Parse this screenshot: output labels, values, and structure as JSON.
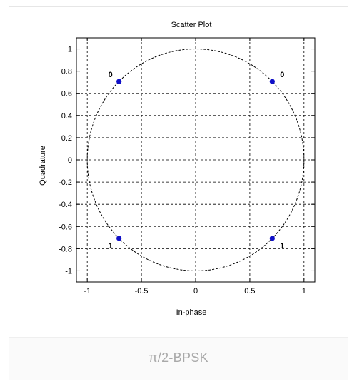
{
  "caption": "π/2-BPSK",
  "chart_data": {
    "type": "scatter",
    "title": "Scatter Plot",
    "xlabel": "In-phase",
    "ylabel": "Quadrature",
    "xlim": [
      -1.1,
      1.1
    ],
    "ylim": [
      -1.1,
      1.1
    ],
    "xticks": [
      -1,
      -0.5,
      0,
      0.5,
      1
    ],
    "xtick_labels": [
      "-1",
      "-0.5",
      "0",
      "0.5",
      "1"
    ],
    "yticks": [
      1,
      0.8,
      0.6,
      0.4,
      0.2,
      0,
      -0.2,
      -0.4,
      -0.6,
      -0.8,
      -1
    ],
    "ytick_labels": [
      "1",
      "0.8",
      "0.6",
      "0.4",
      "0.2",
      "0",
      "-0.2",
      "-0.4",
      "-0.6",
      "-0.8",
      "-1"
    ],
    "grid": true,
    "reference_circle": {
      "radius": 1,
      "style": "dashed"
    },
    "points": [
      {
        "x": -0.707,
        "y": 0.707,
        "label": "0"
      },
      {
        "x": 0.707,
        "y": 0.707,
        "label": "0"
      },
      {
        "x": -0.707,
        "y": -0.707,
        "label": "1"
      },
      {
        "x": 0.707,
        "y": -0.707,
        "label": "1"
      }
    ],
    "colors": {
      "points": "#1010c8",
      "axes": "#000000",
      "grid": "#000000"
    }
  }
}
